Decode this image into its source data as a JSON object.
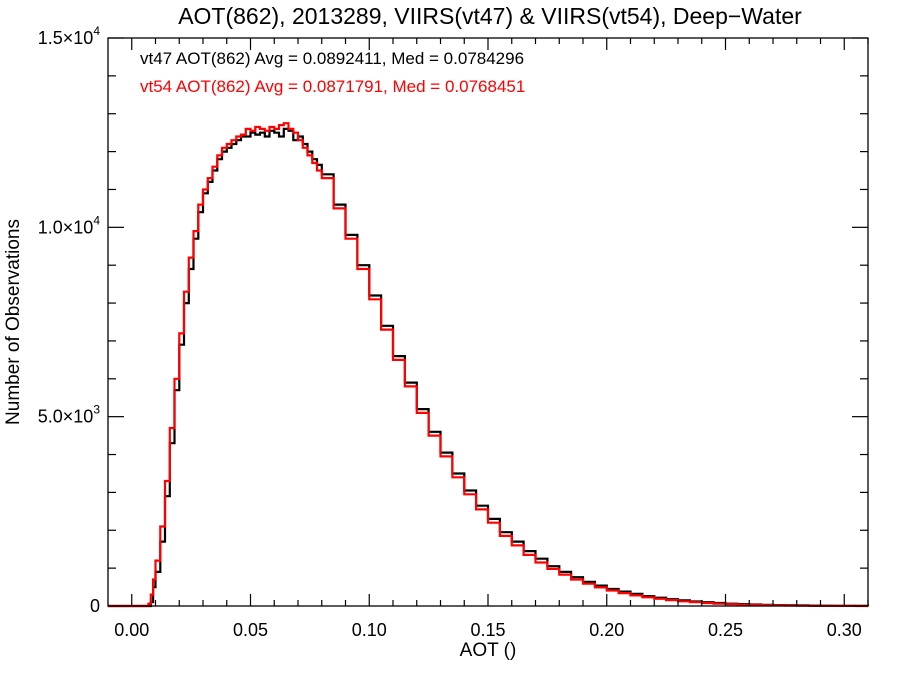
{
  "chart_data": {
    "type": "line",
    "title": "AOT(862), 2013289, VIIRS(vt47) & VIIRS(vt54), Deep−Water",
    "xlabel": "AOT ()",
    "ylabel": "Number of Observations",
    "xlim": [
      -0.01,
      0.31
    ],
    "ylim": [
      0,
      15000
    ],
    "grid": false,
    "xticks": [
      {
        "value": 0.0,
        "label": "0.00"
      },
      {
        "value": 0.05,
        "label": "0.05"
      },
      {
        "value": 0.1,
        "label": "0.10"
      },
      {
        "value": 0.15,
        "label": "0.15"
      },
      {
        "value": 0.2,
        "label": "0.20"
      },
      {
        "value": 0.25,
        "label": "0.25"
      },
      {
        "value": 0.3,
        "label": "0.30"
      }
    ],
    "yticks": [
      {
        "value": 0,
        "mantissa": "0",
        "exp": ""
      },
      {
        "value": 5000,
        "mantissa": "5.0×10",
        "exp": "3"
      },
      {
        "value": 10000,
        "mantissa": "1.0×10",
        "exp": "4"
      },
      {
        "value": 15000,
        "mantissa": "1.5×10",
        "exp": "4"
      }
    ],
    "annotations": [
      {
        "text": "vt47 AOT(862) Avg = 0.0892411, Med = 0.0784296",
        "color": "#000000"
      },
      {
        "text": "vt54 AOT(862) Avg = 0.0871791, Med = 0.0768451",
        "color": "#ff0000"
      }
    ],
    "series": [
      {
        "color": "#000000",
        "x": [
          -0.01,
          0.0,
          0.006,
          0.008,
          0.009,
          0.01,
          0.012,
          0.014,
          0.016,
          0.018,
          0.02,
          0.022,
          0.024,
          0.026,
          0.028,
          0.03,
          0.032,
          0.034,
          0.036,
          0.038,
          0.04,
          0.042,
          0.044,
          0.046,
          0.048,
          0.05,
          0.052,
          0.054,
          0.056,
          0.058,
          0.06,
          0.062,
          0.064,
          0.066,
          0.068,
          0.07,
          0.072,
          0.074,
          0.076,
          0.078,
          0.08,
          0.085,
          0.09,
          0.095,
          0.1,
          0.105,
          0.11,
          0.115,
          0.12,
          0.125,
          0.13,
          0.135,
          0.14,
          0.145,
          0.15,
          0.155,
          0.16,
          0.165,
          0.17,
          0.175,
          0.18,
          0.185,
          0.19,
          0.195,
          0.2,
          0.205,
          0.21,
          0.215,
          0.22,
          0.225,
          0.23,
          0.235,
          0.24,
          0.245,
          0.25,
          0.255,
          0.26,
          0.265,
          0.27,
          0.275,
          0.28,
          0.285,
          0.29,
          0.295,
          0.3,
          0.305,
          0.31
        ],
        "y": [
          0,
          0,
          0,
          100,
          500,
          900,
          1700,
          2900,
          4300,
          5700,
          6900,
          8000,
          8900,
          9700,
          10400,
          10900,
          11200,
          11500,
          11800,
          12000,
          12100,
          12200,
          12300,
          12400,
          12400,
          12500,
          12450,
          12500,
          12400,
          12550,
          12500,
          12400,
          12600,
          12550,
          12300,
          12400,
          12200,
          12000,
          11800,
          11650,
          11400,
          10600,
          9800,
          9000,
          8200,
          7400,
          6600,
          5900,
          5200,
          4600,
          4050,
          3500,
          3050,
          2650,
          2300,
          1950,
          1700,
          1450,
          1250,
          1050,
          900,
          760,
          640,
          540,
          450,
          380,
          320,
          260,
          220,
          180,
          150,
          120,
          100,
          80,
          60,
          50,
          40,
          30,
          25,
          20,
          15,
          10,
          8,
          5,
          3,
          2,
          0
        ]
      },
      {
        "color": "#ff0000",
        "x": [
          -0.01,
          0.0,
          0.006,
          0.007,
          0.008,
          0.009,
          0.01,
          0.012,
          0.014,
          0.016,
          0.018,
          0.02,
          0.022,
          0.024,
          0.026,
          0.028,
          0.03,
          0.032,
          0.034,
          0.036,
          0.038,
          0.04,
          0.042,
          0.044,
          0.046,
          0.048,
          0.05,
          0.052,
          0.054,
          0.056,
          0.058,
          0.06,
          0.062,
          0.064,
          0.066,
          0.068,
          0.07,
          0.072,
          0.074,
          0.076,
          0.078,
          0.08,
          0.085,
          0.09,
          0.095,
          0.1,
          0.105,
          0.11,
          0.115,
          0.12,
          0.125,
          0.13,
          0.135,
          0.14,
          0.145,
          0.15,
          0.155,
          0.16,
          0.165,
          0.17,
          0.175,
          0.18,
          0.185,
          0.19,
          0.195,
          0.2,
          0.205,
          0.21,
          0.215,
          0.22,
          0.225,
          0.23,
          0.235,
          0.24,
          0.245,
          0.25,
          0.255,
          0.26,
          0.265,
          0.27,
          0.275,
          0.28,
          0.285,
          0.29,
          0.295,
          0.3,
          0.305,
          0.31
        ],
        "y": [
          0,
          0,
          0,
          60,
          300,
          700,
          1200,
          2100,
          3300,
          4700,
          6000,
          7200,
          8300,
          9200,
          9900,
          10600,
          11000,
          11300,
          11600,
          11900,
          12100,
          12200,
          12300,
          12400,
          12450,
          12600,
          12550,
          12650,
          12600,
          12550,
          12650,
          12600,
          12700,
          12750,
          12600,
          12500,
          12300,
          12100,
          11900,
          11700,
          11500,
          11300,
          10500,
          9700,
          8900,
          8100,
          7300,
          6500,
          5800,
          5100,
          4500,
          3950,
          3400,
          2950,
          2550,
          2200,
          1850,
          1600,
          1350,
          1150,
          980,
          830,
          700,
          590,
          490,
          410,
          340,
          280,
          230,
          190,
          155,
          125,
          100,
          80,
          62,
          48,
          36,
          28,
          22,
          16,
          12,
          8,
          6,
          4,
          3,
          2,
          1,
          0
        ]
      }
    ]
  }
}
